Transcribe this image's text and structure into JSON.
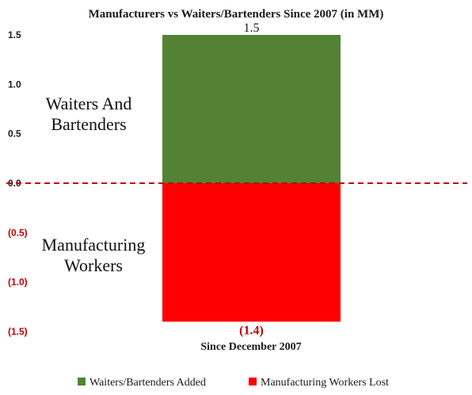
{
  "chart_data": {
    "type": "bar",
    "title": "Manufacturers vs Waiters/Bartenders Since 2007 (in MM)",
    "categories": [
      "Since December 2007"
    ],
    "series": [
      {
        "name": "Waiters/Bartenders Added",
        "values": [
          1.5
        ],
        "color": "#538234"
      },
      {
        "name": "Manufacturing Workers Lost",
        "values": [
          -1.4
        ],
        "color": "#ff0000"
      }
    ],
    "data_labels": [
      "1.5",
      "(1.4)"
    ],
    "ylim": [
      -1.5,
      1.5
    ],
    "yticks": [
      {
        "value": 1.5,
        "label": "1.5"
      },
      {
        "value": 1.0,
        "label": "1.0"
      },
      {
        "value": 0.5,
        "label": "0.5"
      },
      {
        "value": 0.0,
        "label": "0.0"
      },
      {
        "value": -0.5,
        "label": "(0.5)"
      },
      {
        "value": -1.0,
        "label": "(1.0)"
      },
      {
        "value": -1.5,
        "label": "(1.5)"
      }
    ],
    "zero_line": {
      "style": "dashed",
      "color": "#c00000"
    },
    "annotations": [
      {
        "lines": [
          "Waiters And",
          "Bartenders"
        ]
      },
      {
        "lines": [
          "Manufacturing",
          "Workers"
        ]
      }
    ],
    "grid": false,
    "legend": "bottom"
  }
}
